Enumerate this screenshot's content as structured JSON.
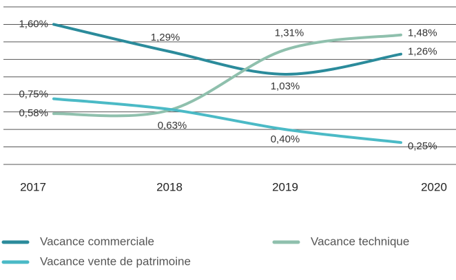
{
  "chart_data": {
    "type": "line",
    "categories": [
      "2017",
      "2018",
      "2019",
      "2020"
    ],
    "series": [
      {
        "name": "Vacance commerciale",
        "color": "#2b8b9b",
        "values": [
          1.6,
          1.29,
          1.03,
          1.26
        ],
        "value_labels": [
          "1,60%",
          "1,29%",
          "1,03%",
          "1,26%"
        ]
      },
      {
        "name": "Vacance technique",
        "color": "#8fc0ad",
        "values": [
          0.58,
          0.62,
          1.31,
          1.48
        ],
        "value_labels": [
          "0,58%",
          null,
          "1,31%",
          "1,48%"
        ]
      },
      {
        "name": "Vacance vente de patrimoine",
        "color": "#4bbac6",
        "values": [
          0.75,
          0.63,
          0.4,
          0.25
        ],
        "value_labels": [
          "0,75%",
          "0,63%",
          "0,40%",
          "0,25%"
        ]
      }
    ],
    "ylim": [
      0,
      1.8
    ],
    "yticks": [
      0,
      0.2,
      0.4,
      0.6,
      0.8,
      1.0,
      1.2,
      1.4,
      1.6,
      1.8
    ],
    "grid": true
  }
}
